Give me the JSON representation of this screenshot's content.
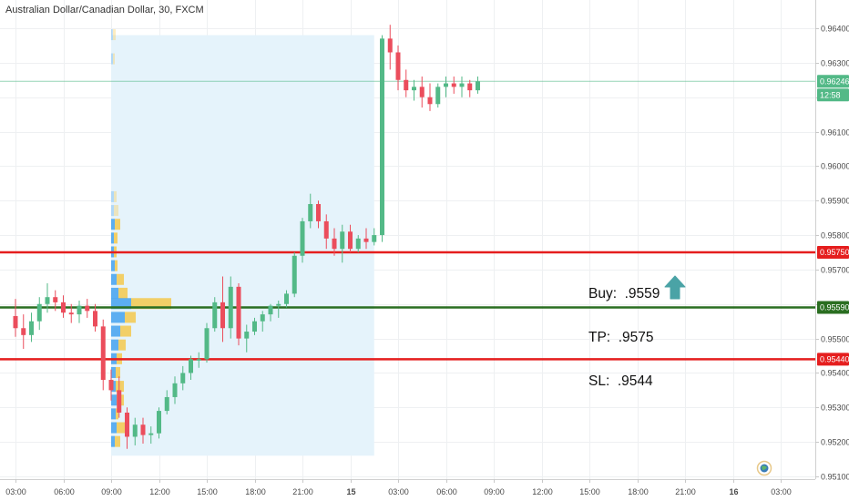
{
  "symbol_title": "Australian Dollar/Canadian Dollar, 30, FXCM",
  "trade_note": {
    "buy": "Buy:  .9559",
    "tp": "TP:  .9575",
    "sl": "SL:  .9544"
  },
  "colors": {
    "up_candle": "#53b987",
    "down_candle": "#eb4d5c",
    "tp_line": "#e51e1e",
    "sl_line": "#e51e1e",
    "entry_line": "#2a6e21",
    "last_price_line": "#53b987",
    "volume_profile_up": "#4da6f0",
    "volume_profile_down": "#f5c84c",
    "volume_profile_area": "#e5f3fb",
    "arrow": "#4aa3a6"
  },
  "icons": {
    "trade_arrow": "arrow-up-icon",
    "screenshot_badge": "globe-icon"
  },
  "chart_data": {
    "type": "candlestick",
    "title": "Australian Dollar/Canadian Dollar, 30, FXCM",
    "y_axis": {
      "ylim": [
        0.9509,
        0.9642
      ],
      "tick_labels": [
        "0.96400",
        "0.96300",
        "0.96200",
        "0.96100",
        "0.96000",
        "0.95900",
        "0.95800",
        "0.95700",
        "0.95600",
        "0.95500",
        "0.95400",
        "0.95300",
        "0.95200",
        "0.95100"
      ],
      "tick_values": [
        0.964,
        0.963,
        0.962,
        0.961,
        0.96,
        0.959,
        0.958,
        0.957,
        0.956,
        0.955,
        0.954,
        0.953,
        0.952,
        0.951
      ],
      "grid": true,
      "position": "right"
    },
    "x_axis": {
      "tick_labels": [
        "03:00",
        "06:00",
        "09:00",
        "12:00",
        "15:00",
        "18:00",
        "21:00",
        "15",
        "03:00",
        "06:00",
        "09:00",
        "12:00",
        "15:00",
        "18:00",
        "21:00",
        "16",
        "03:00"
      ],
      "tick_bars": [
        0,
        6,
        12,
        18,
        24,
        30,
        36,
        42,
        48,
        54,
        60,
        66,
        72,
        78,
        84,
        90,
        96
      ],
      "bold_ticks": [
        "15",
        "16"
      ],
      "grid": true
    },
    "candles": [
      [
        0.95565,
        0.95615,
        0.95505,
        0.9553
      ],
      [
        0.9553,
        0.9557,
        0.9547,
        0.9551
      ],
      [
        0.9551,
        0.95575,
        0.9549,
        0.9555
      ],
      [
        0.9555,
        0.9562,
        0.95525,
        0.956
      ],
      [
        0.956,
        0.9566,
        0.95575,
        0.9562
      ],
      [
        0.9562,
        0.9564,
        0.9558,
        0.95605
      ],
      [
        0.95605,
        0.95625,
        0.9556,
        0.95575
      ],
      [
        0.95575,
        0.956,
        0.95545,
        0.9557
      ],
      [
        0.9557,
        0.9561,
        0.95545,
        0.95595
      ],
      [
        0.95595,
        0.95615,
        0.9556,
        0.9558
      ],
      [
        0.9558,
        0.956,
        0.9552,
        0.95535
      ],
      [
        0.95535,
        0.95555,
        0.9535,
        0.9538
      ],
      [
        0.9538,
        0.9541,
        0.9532,
        0.9535
      ],
      [
        0.9535,
        0.9539,
        0.9527,
        0.95285
      ],
      [
        0.95285,
        0.953,
        0.9518,
        0.95215
      ],
      [
        0.95215,
        0.9527,
        0.9519,
        0.9525
      ],
      [
        0.9525,
        0.9527,
        0.95195,
        0.9522
      ],
      [
        0.9522,
        0.95245,
        0.95195,
        0.95225
      ],
      [
        0.95225,
        0.953,
        0.9521,
        0.9529
      ],
      [
        0.9529,
        0.9535,
        0.9528,
        0.9533
      ],
      [
        0.9533,
        0.9539,
        0.9531,
        0.9537
      ],
      [
        0.9537,
        0.9542,
        0.9535,
        0.954
      ],
      [
        0.954,
        0.9545,
        0.9538,
        0.9544
      ],
      [
        0.9544,
        0.9546,
        0.95415,
        0.9544
      ],
      [
        0.9544,
        0.95545,
        0.9543,
        0.9553
      ],
      [
        0.9553,
        0.9562,
        0.9552,
        0.95605
      ],
      [
        0.95605,
        0.9568,
        0.9549,
        0.9553
      ],
      [
        0.9553,
        0.9568,
        0.955,
        0.9565
      ],
      [
        0.9565,
        0.9566,
        0.9548,
        0.955
      ],
      [
        0.955,
        0.9554,
        0.9546,
        0.9552
      ],
      [
        0.9552,
        0.9556,
        0.9551,
        0.9555
      ],
      [
        0.9555,
        0.9558,
        0.9552,
        0.9557
      ],
      [
        0.9557,
        0.956,
        0.9555,
        0.95595
      ],
      [
        0.95595,
        0.9561,
        0.9556,
        0.956
      ],
      [
        0.956,
        0.9564,
        0.9559,
        0.9563
      ],
      [
        0.9563,
        0.9575,
        0.9562,
        0.9574
      ],
      [
        0.9574,
        0.9585,
        0.9572,
        0.9584
      ],
      [
        0.9584,
        0.9592,
        0.9582,
        0.9589
      ],
      [
        0.9589,
        0.959,
        0.9582,
        0.9584
      ],
      [
        0.9584,
        0.9586,
        0.9576,
        0.9579
      ],
      [
        0.9579,
        0.9582,
        0.9574,
        0.9576
      ],
      [
        0.9576,
        0.9583,
        0.9572,
        0.9581
      ],
      [
        0.9581,
        0.9583,
        0.9575,
        0.9576
      ],
      [
        0.9576,
        0.958,
        0.9575,
        0.9579
      ],
      [
        0.9579,
        0.9582,
        0.9576,
        0.9578
      ],
      [
        0.9578,
        0.9582,
        0.9577,
        0.958
      ],
      [
        0.958,
        0.9638,
        0.9578,
        0.9637
      ],
      [
        0.9637,
        0.9641,
        0.9628,
        0.9633
      ],
      [
        0.9633,
        0.9635,
        0.9622,
        0.9625
      ],
      [
        0.9625,
        0.9628,
        0.962,
        0.9622
      ],
      [
        0.9622,
        0.9625,
        0.9619,
        0.9623
      ],
      [
        0.9623,
        0.9626,
        0.9617,
        0.962
      ],
      [
        0.962,
        0.9624,
        0.9616,
        0.9618
      ],
      [
        0.9618,
        0.9624,
        0.9617,
        0.9623
      ],
      [
        0.9623,
        0.9626,
        0.962,
        0.9624
      ],
      [
        0.9624,
        0.9626,
        0.9621,
        0.9623
      ],
      [
        0.9623,
        0.9626,
        0.962,
        0.9624
      ],
      [
        0.9624,
        0.9625,
        0.962,
        0.9622
      ],
      [
        0.9622,
        0.9626,
        0.9621,
        0.96246
      ]
    ],
    "horizontal_lines": [
      {
        "value": 0.9575,
        "label": "0.95750",
        "role": "take-profit"
      },
      {
        "value": 0.9559,
        "label": "0.95590",
        "role": "entry"
      },
      {
        "value": 0.9544,
        "label": "0.95440",
        "role": "stop-loss"
      }
    ],
    "last_price": {
      "value": 0.96246,
      "label": "0.96246",
      "countdown": "12:58"
    },
    "volume_profile": {
      "start_bar": 12,
      "end_bar": 45,
      "rows": [
        {
          "price": 0.9638,
          "up": 2,
          "down": 3
        },
        {
          "price": 0.9631,
          "up": 2,
          "down": 2
        },
        {
          "price": 0.9591,
          "up": 3,
          "down": 3
        },
        {
          "price": 0.9587,
          "up": 3,
          "down": 5
        },
        {
          "price": 0.9583,
          "up": 4,
          "down": 6
        },
        {
          "price": 0.9579,
          "up": 3,
          "down": 4
        },
        {
          "price": 0.9575,
          "up": 3,
          "down": 3
        },
        {
          "price": 0.9571,
          "up": 4,
          "down": 3
        },
        {
          "price": 0.9567,
          "up": 6,
          "down": 8
        },
        {
          "price": 0.9563,
          "up": 8,
          "down": 10
        },
        {
          "price": 0.956,
          "up": 22,
          "down": 44
        },
        {
          "price": 0.9556,
          "up": 15,
          "down": 12
        },
        {
          "price": 0.9552,
          "up": 10,
          "down": 12
        },
        {
          "price": 0.9548,
          "up": 8,
          "down": 8
        },
        {
          "price": 0.9544,
          "up": 6,
          "down": 6
        },
        {
          "price": 0.954,
          "up": 5,
          "down": 5
        },
        {
          "price": 0.9536,
          "up": 5,
          "down": 9
        },
        {
          "price": 0.9532,
          "up": 6,
          "down": 8
        },
        {
          "price": 0.9528,
          "up": 5,
          "down": 3
        },
        {
          "price": 0.9524,
          "up": 6,
          "down": 10
        },
        {
          "price": 0.952,
          "up": 4,
          "down": 6
        }
      ]
    },
    "time_countdown_badge": "12:58"
  }
}
